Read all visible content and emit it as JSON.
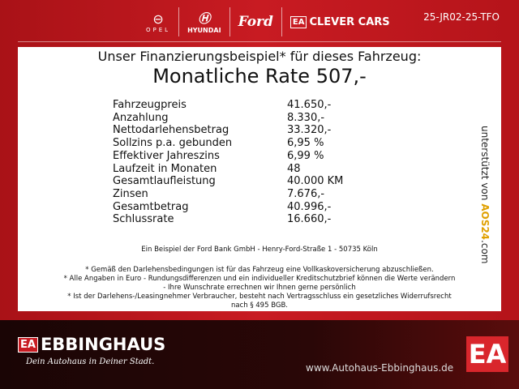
{
  "header": {
    "brands": [
      "OPEL",
      "HYUNDAI",
      "Ford",
      "CLEVER CARS"
    ],
    "clever_prefix": "EA",
    "code": "25-JR02-25-TFO"
  },
  "panel": {
    "title": "Unser Finanzierungsbeispiel* für dieses Fahrzeug:",
    "rate": "Monatliche Rate 507,-",
    "rows": [
      {
        "label": "Fahrzeugpreis",
        "value": "41.650,-"
      },
      {
        "label": "Anzahlung",
        "value": "8.330,-"
      },
      {
        "label": "Nettodarlehensbetrag",
        "value": "33.320,-"
      },
      {
        "label": "Sollzins p.a. gebunden",
        "value": "6,95 %"
      },
      {
        "label": "Effektiver Jahreszins",
        "value": "6,99 %"
      },
      {
        "label": "Laufzeit in Monaten",
        "value": "48"
      },
      {
        "label": "Gesamtlaufleistung",
        "value": "40.000 KM"
      },
      {
        "label": "Zinsen",
        "value": "7.676,-"
      },
      {
        "label": "Gesamtbetrag",
        "value": "40.996,-"
      },
      {
        "label": "Schlussrate",
        "value": "16.660,-"
      }
    ],
    "bank": "Ein Beispiel der Ford Bank GmbH - Henry-Ford-Straße 1 - 50735 Köln",
    "notes": [
      "* Gemäß den Darlehensbedingungen ist für das Fahrzeug eine Vollkaskoversicherung abzuschließen.",
      "* Alle Angaben in Euro - Rundungsdifferenzen und ein individueller Kreditschutzbrief können die Werte verändern",
      "- Ihre Wunschrate errechnen wir Ihnen gerne persönlich",
      "* Ist der Darlehens-/Leasingnehmer Verbraucher, besteht nach Vertragsschluss ein gesetzliches Widerrufsrecht",
      "nach § 495 BGB."
    ],
    "side_text": "unterstützt von",
    "side_brand": "AOS24",
    "side_tld": ".com"
  },
  "footer": {
    "logo_prefix": "EA",
    "logo": "EBBINGHAUS",
    "slogan": "Dein Autohaus in Deiner Stadt.",
    "url": "www.Autohaus-Ebbinghaus.de",
    "badge": "EA"
  }
}
